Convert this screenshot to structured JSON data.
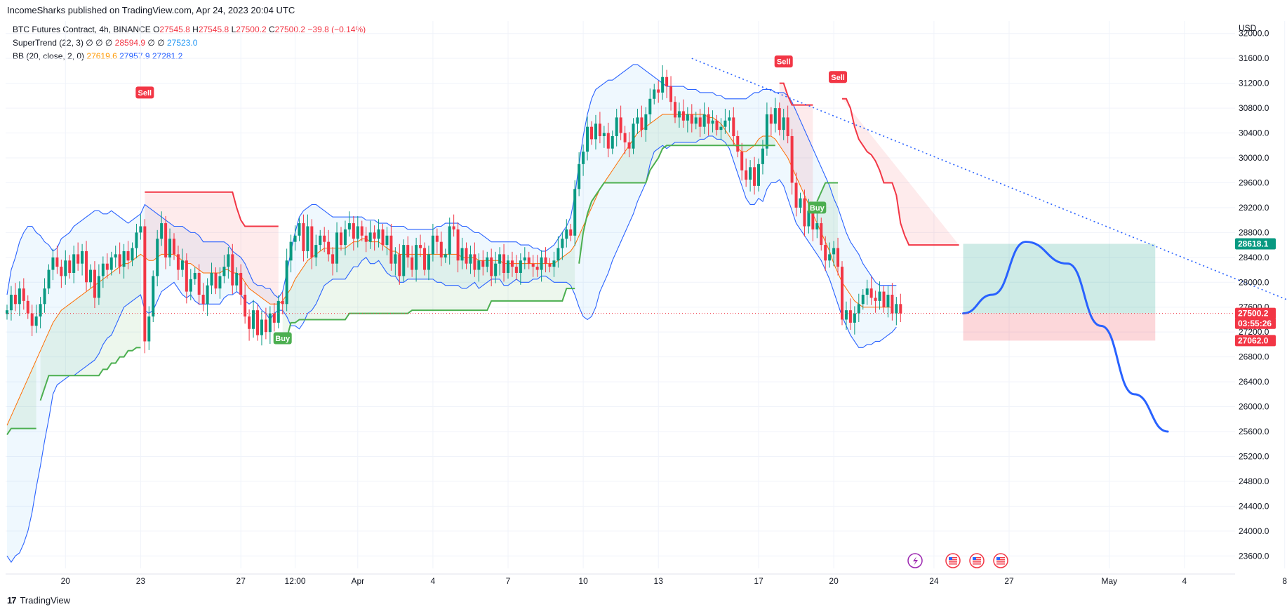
{
  "header": {
    "published": "IncomeSharks published on TradingView.com, Apr 24, 2023 20:04 UTC"
  },
  "legend": {
    "symbol": "BTC Futures Contract, 4h, BINANCE",
    "o_label": "O",
    "o": "27545.8",
    "h_label": "H",
    "h": "27545.8",
    "l_label": "L",
    "l": "27500.2",
    "c_label": "C",
    "c": "27500.2",
    "change": "−39.8 (−0.14%)",
    "supertrend_label": "SuperTrend (22, 3)",
    "supertrend_dots": "∅ ∅ ∅",
    "supertrend_v1": "28594.9",
    "supertrend_dots2": "∅ ∅",
    "supertrend_v2": "27523.0",
    "bb_label": "BB (20, close, 2, 0)",
    "bb_basis": "27619.6",
    "bb_upper": "27957.9",
    "bb_lower": "27281.2"
  },
  "footer": {
    "brand": "TradingView",
    "logo": "17"
  },
  "colors": {
    "up": "#089981",
    "down": "#f23645",
    "bb_band": "#2962ff",
    "bb_basis": "#ff6d00",
    "st_up": "#4caf50",
    "st_down": "#f23645",
    "projection": "#2962ff"
  },
  "chart_data": {
    "type": "candlestick",
    "title": "",
    "currency": "USD",
    "ylim": [
      23400,
      32200
    ],
    "yticks": [
      23600,
      24000,
      24400,
      24800,
      25200,
      25600,
      26000,
      26400,
      26800,
      27200,
      27600,
      28000,
      28400,
      28800,
      29200,
      29600,
      30000,
      30400,
      30800,
      31200,
      31600,
      32000
    ],
    "xticks": [
      {
        "label": "20",
        "i": 14
      },
      {
        "label": "23",
        "i": 32
      },
      {
        "label": "27",
        "i": 56
      },
      {
        "label": "12:00",
        "i": 69
      },
      {
        "label": "Apr",
        "i": 84
      },
      {
        "label": "4",
        "i": 102
      },
      {
        "label": "7",
        "i": 120
      },
      {
        "label": "10",
        "i": 138
      },
      {
        "label": "13",
        "i": 156
      },
      {
        "label": "17",
        "i": 180
      },
      {
        "label": "20",
        "i": 198
      },
      {
        "label": "24",
        "i": 222
      },
      {
        "label": "27",
        "i": 240
      },
      {
        "label": "May",
        "i": 264
      },
      {
        "label": "4",
        "i": 282
      },
      {
        "label": "8",
        "i": 306
      }
    ],
    "candles_close": [
      27550,
      27800,
      27650,
      27900,
      27700,
      27500,
      27300,
      27450,
      27650,
      27900,
      28200,
      28400,
      28250,
      28100,
      28350,
      28150,
      28450,
      28300,
      28500,
      28000,
      28200,
      27750,
      28100,
      28300,
      28200,
      28400,
      28450,
      28250,
      28500,
      28350,
      28550,
      28800,
      28900,
      27050,
      27450,
      28100,
      28700,
      28950,
      28400,
      28700,
      28450,
      28200,
      28350,
      27850,
      28050,
      28150,
      27800,
      27650,
      27950,
      28150,
      27900,
      28100,
      28250,
      28450,
      27950,
      28150,
      27800,
      27450,
      27250,
      27550,
      27150,
      27400,
      27200,
      27500,
      27350,
      27700,
      27650,
      28350,
      28650,
      28750,
      28950,
      28500,
      28900,
      28400,
      28600,
      28750,
      28650,
      28450,
      28300,
      28800,
      28600,
      28850,
      28950,
      28700,
      28900,
      28750,
      28650,
      28800,
      28700,
      28850,
      28600,
      28750,
      28300,
      28450,
      28100,
      28600,
      28400,
      28200,
      28600,
      28550,
      28200,
      28450,
      28750,
      28650,
      28400,
      28450,
      28900,
      28850,
      28350,
      28550,
      28300,
      28450,
      28200,
      28350,
      28250,
      28400,
      28100,
      28300,
      28450,
      28150,
      28350,
      28250,
      28150,
      28350,
      28400,
      28300,
      28250,
      28200,
      28400,
      28300,
      28250,
      28350,
      28550,
      28700,
      28850,
      28750,
      29500,
      29900,
      30100,
      30500,
      30300,
      30550,
      30350,
      30400,
      30150,
      30350,
      30650,
      30400,
      30250,
      30150,
      30550,
      30650,
      30450,
      30700,
      30950,
      31100,
      31050,
      31300,
      31150,
      30900,
      30650,
      30750,
      30600,
      30700,
      30550,
      30650,
      30500,
      30700,
      30550,
      30600,
      30450,
      30500,
      30600,
      30650,
      30350,
      30100,
      29800,
      29650,
      29850,
      29550,
      29900,
      30150,
      30700,
      30550,
      30800,
      30450,
      30650,
      30350,
      29600,
      29200,
      29350,
      28900,
      29150,
      28850,
      28950,
      28600,
      28350,
      28450,
      28550,
      28250,
      27400,
      27550,
      27350,
      27500,
      27650,
      27800,
      27900,
      27750,
      27700,
      27850,
      27600,
      27800,
      27500,
      27650,
      27500
    ],
    "bb_basis": [
      25700,
      25850,
      26000,
      26150,
      26300,
      26450,
      26600,
      26750,
      26900,
      27050,
      27200,
      27350,
      27450,
      27550,
      27600,
      27650,
      27700,
      27750,
      27800,
      27850,
      27900,
      27950,
      28000,
      28050,
      28100,
      28150,
      28200,
      28250,
      28300,
      28300,
      28350,
      28400,
      28450,
      28400,
      28350,
      28350,
      28400,
      28450,
      28450,
      28450,
      28450,
      28400,
      28350,
      28300,
      28300,
      28250,
      28200,
      28150,
      28150,
      28150,
      28150,
      28150,
      28200,
      28200,
      28150,
      28150,
      28100,
      28000,
      27900,
      27850,
      27800,
      27750,
      27700,
      27650,
      27650,
      27650,
      27700,
      27800,
      27900,
      28050,
      28150,
      28250,
      28350,
      28400,
      28450,
      28500,
      28550,
      28550,
      28550,
      28550,
      28550,
      28550,
      28600,
      28650,
      28650,
      28700,
      28700,
      28650,
      28650,
      28650,
      28600,
      28550,
      28500,
      28500,
      28450,
      28450,
      28450,
      28450,
      28450,
      28450,
      28450,
      28450,
      28450,
      28450,
      28450,
      28450,
      28450,
      28450,
      28450,
      28400,
      28400,
      28400,
      28400,
      28350,
      28350,
      28350,
      28350,
      28350,
      28350,
      28300,
      28300,
      28300,
      28300,
      28300,
      28300,
      28300,
      28300,
      28300,
      28300,
      28300,
      28300,
      28300,
      28350,
      28400,
      28450,
      28500,
      28600,
      28750,
      28900,
      29050,
      29200,
      29350,
      29500,
      29600,
      29700,
      29800,
      29900,
      30000,
      30100,
      30200,
      30300,
      30400,
      30450,
      30500,
      30550,
      30600,
      30650,
      30700,
      30700,
      30700,
      30700,
      30700,
      30700,
      30700,
      30700,
      30700,
      30700,
      30700,
      30650,
      30650,
      30600,
      30550,
      30450,
      30350,
      30250,
      30150,
      30100,
      30100,
      30150,
      30200,
      30300,
      30350,
      30350,
      30350,
      30300,
      30200,
      30100,
      30000,
      29850,
      29700,
      29550,
      29400,
      29250,
      29100,
      28950,
      28800,
      28650,
      28500,
      28300,
      28150,
      28000,
      27900,
      27800,
      27700,
      27650,
      27600,
      27600,
      27600,
      27600,
      27600,
      27600,
      27600,
      27600
    ],
    "bb_upper": [
      27800,
      28200,
      28400,
      28650,
      28800,
      28900,
      28900,
      28800,
      28750,
      28650,
      28600,
      28500,
      28550,
      28700,
      28750,
      28800,
      28900,
      28950,
      29000,
      29050,
      29100,
      29150,
      29150,
      29100,
      29100,
      29150,
      29100,
      29050,
      29000,
      28950,
      29000,
      29050,
      29100,
      29250,
      29200,
      29150,
      29100,
      29050,
      29000,
      28950,
      28900,
      28900,
      28900,
      28850,
      28800,
      28800,
      28750,
      28650,
      28650,
      28650,
      28650,
      28650,
      28650,
      28600,
      28500,
      28450,
      28400,
      28300,
      28150,
      28000,
      27950,
      27950,
      27900,
      27900,
      27800,
      27750,
      27850,
      28150,
      28500,
      28800,
      29050,
      29150,
      29200,
      29250,
      29250,
      29200,
      29150,
      29100,
      29050,
      29050,
      29050,
      29050,
      29050,
      29050,
      29050,
      29050,
      29000,
      29000,
      29000,
      28950,
      28950,
      28950,
      28900,
      28900,
      28900,
      28900,
      28850,
      28850,
      28850,
      28850,
      28850,
      28850,
      28850,
      28900,
      28900,
      28950,
      28950,
      28950,
      28950,
      28900,
      28900,
      28850,
      28800,
      28800,
      28750,
      28700,
      28650,
      28650,
      28650,
      28650,
      28650,
      28650,
      28650,
      28600,
      28600,
      28600,
      28550,
      28550,
      28500,
      28500,
      28550,
      28600,
      28700,
      28800,
      28900,
      29050,
      29400,
      29900,
      30350,
      30700,
      30950,
      31100,
      31150,
      31200,
      31250,
      31250,
      31300,
      31350,
      31400,
      31450,
      31500,
      31500,
      31450,
      31400,
      31350,
      31300,
      31250,
      31200,
      31150,
      31150,
      31150,
      31150,
      31150,
      31100,
      31100,
      31100,
      31050,
      31050,
      31050,
      31050,
      31000,
      31000,
      30950,
      30950,
      30950,
      30950,
      30950,
      30950,
      31000,
      31050,
      31050,
      31100,
      31100,
      31100,
      31050,
      31050,
      31050,
      31000,
      30900,
      30750,
      30600,
      30450,
      30300,
      30150,
      30000,
      29850,
      29700,
      29550,
      29350,
      29200,
      29000,
      28800,
      28650,
      28550,
      28450,
      28300,
      28200,
      28100,
      28000,
      27950,
      27950,
      27950,
      27950,
      27950
    ],
    "bb_lower": [
      23600,
      23500,
      23600,
      23650,
      23800,
      24000,
      24300,
      24700,
      25050,
      25450,
      25800,
      26200,
      26350,
      26400,
      26450,
      26500,
      26500,
      26550,
      26600,
      26650,
      26700,
      26750,
      26850,
      27000,
      27100,
      27150,
      27300,
      27450,
      27600,
      27650,
      27700,
      27750,
      27800,
      27550,
      27500,
      27550,
      27700,
      27850,
      27900,
      27950,
      28000,
      27900,
      27800,
      27750,
      27800,
      27700,
      27650,
      27650,
      27650,
      27650,
      27650,
      27650,
      27750,
      27800,
      27800,
      27850,
      27800,
      27700,
      27650,
      27700,
      27650,
      27550,
      27500,
      27400,
      27500,
      27550,
      27550,
      27450,
      27300,
      27300,
      27250,
      27350,
      27500,
      27550,
      27650,
      27800,
      27950,
      28000,
      28050,
      28050,
      28050,
      28050,
      28150,
      28250,
      28250,
      28350,
      28400,
      28300,
      28300,
      28350,
      28250,
      28150,
      28100,
      28100,
      28000,
      28000,
      28050,
      28050,
      28050,
      28050,
      28050,
      28050,
      28050,
      28000,
      28000,
      27950,
      27950,
      27950,
      27950,
      27900,
      27900,
      27950,
      28000,
      27900,
      27950,
      28000,
      28050,
      28050,
      28050,
      27950,
      27950,
      28000,
      28050,
      28000,
      28000,
      28000,
      28050,
      28050,
      28100,
      28100,
      28050,
      28000,
      28000,
      28000,
      28000,
      27950,
      27800,
      27600,
      27450,
      27400,
      27450,
      27600,
      27850,
      28000,
      28150,
      28350,
      28500,
      28650,
      28800,
      28950,
      29100,
      29300,
      29450,
      29600,
      29900,
      30100,
      30150,
      30200,
      30150,
      30200,
      30250,
      30250,
      30250,
      30250,
      30250,
      30250,
      30300,
      30300,
      30350,
      30350,
      30300,
      30300,
      30250,
      30150,
      29950,
      29750,
      29550,
      29350,
      29250,
      29250,
      29350,
      29300,
      29500,
      29600,
      29600,
      29650,
      29550,
      29350,
      29150,
      28950,
      28850,
      28750,
      28650,
      28550,
      28450,
      28350,
      28200,
      28050,
      27850,
      27650,
      27450,
      27300,
      27150,
      27050,
      26950,
      26950,
      27000,
      27000,
      27050,
      27050,
      27100,
      27150,
      27200,
      27280
    ],
    "supertrend": [
      {
        "side": "up",
        "from": 0,
        "to": 7,
        "values": [
          25550,
          25650,
          25650,
          25650,
          25650,
          25650,
          25650,
          25650
        ]
      },
      {
        "side": "up",
        "from": 8,
        "to": 32,
        "values": [
          26100,
          26300,
          26500,
          26500,
          26500,
          26500,
          26500,
          26500,
          26500,
          26500,
          26500,
          26500,
          26500,
          26500,
          26500,
          26600,
          26600,
          26700,
          26700,
          26800,
          26800,
          26900,
          26900,
          26950,
          26950
        ]
      },
      {
        "side": "down",
        "from": 33,
        "to": 65,
        "values": [
          29450,
          29450,
          29450,
          29450,
          29450,
          29450,
          29450,
          29450,
          29450,
          29450,
          29450,
          29450,
          29450,
          29450,
          29450,
          29450,
          29450,
          29450,
          29450,
          29450,
          29450,
          29450,
          29200,
          29000,
          28900,
          28900,
          28900,
          28900,
          28900,
          28900,
          28900,
          28900,
          28900
        ]
      },
      {
        "side": "up",
        "from": 66,
        "to": 136,
        "values": [
          27100,
          27100,
          27350,
          27350,
          27400,
          27400,
          27400,
          27400,
          27400,
          27400,
          27400,
          27400,
          27400,
          27400,
          27400,
          27400,
          27500,
          27500,
          27500,
          27500,
          27500,
          27500,
          27500,
          27500,
          27500,
          27500,
          27500,
          27500,
          27500,
          27500,
          27500,
          27550,
          27550,
          27550,
          27550,
          27550,
          27550,
          27550,
          27550,
          27550,
          27550,
          27550,
          27550,
          27550,
          27550,
          27550,
          27550,
          27550,
          27550,
          27550,
          27700,
          27700,
          27700,
          27700,
          27700,
          27700,
          27700,
          27700,
          27700,
          27700,
          27700,
          27700,
          27700,
          27700,
          27700,
          27700,
          27700,
          27700,
          27900,
          27900,
          27900
        ]
      },
      {
        "side": "up",
        "from": 137,
        "to": 184,
        "values": [
          28300,
          28800,
          29100,
          29300,
          29400,
          29500,
          29600,
          29600,
          29600,
          29600,
          29600,
          29600,
          29600,
          29600,
          29600,
          29600,
          29600,
          29800,
          29900,
          30000,
          30150,
          30200,
          30200,
          30200,
          30200,
          30200,
          30200,
          30200,
          30200,
          30200,
          30200,
          30200,
          30200,
          30200,
          30200,
          30200,
          30200,
          30200,
          30200,
          30200,
          30200,
          30200,
          30200,
          30200,
          30200,
          30200,
          30200,
          30200
        ]
      },
      {
        "side": "down",
        "from": 185,
        "to": 193,
        "values": [
          31200,
          31200,
          31000,
          30850,
          30850,
          30850,
          30850,
          30850,
          30850
        ]
      },
      {
        "side": "up",
        "from": 194,
        "to": 199,
        "values": [
          29300,
          29450,
          29600,
          29600,
          29600,
          29600
        ]
      },
      {
        "side": "down",
        "from": 200,
        "to": 228,
        "values": [
          30950,
          30950,
          30800,
          30500,
          30300,
          30200,
          30100,
          30050,
          29950,
          29800,
          29600,
          29600,
          29600,
          29400,
          28950,
          28750,
          28600,
          28600,
          28600,
          28600,
          28600,
          28600,
          28600,
          28600,
          28600,
          28600,
          28600,
          28600,
          28600
        ]
      }
    ],
    "signals": [
      {
        "type": "Sell",
        "i": 33,
        "price": 31050
      },
      {
        "type": "Buy",
        "i": 66,
        "price": 27100
      },
      {
        "type": "Sell",
        "i": 186,
        "price": 31550
      },
      {
        "type": "Sell",
        "i": 199,
        "price": 31300
      },
      {
        "type": "Buy",
        "i": 194,
        "price": 29200
      }
    ],
    "trendline": {
      "from": {
        "i": 164,
        "price": 31600
      },
      "to": {
        "i": 322,
        "price": 27300
      }
    },
    "position": {
      "from_i": 229,
      "to_i": 275,
      "entry": 27500.2,
      "target": 28618.1,
      "stop": 27062.0
    },
    "projection": [
      {
        "i": 229,
        "price": 27500
      },
      {
        "i": 236,
        "price": 27800
      },
      {
        "i": 244,
        "price": 28650
      },
      {
        "i": 254,
        "price": 28300
      },
      {
        "i": 262,
        "price": 27300
      },
      {
        "i": 270,
        "price": 26200
      },
      {
        "i": 278,
        "price": 25600
      }
    ],
    "price_labels": [
      {
        "value": "28618.1",
        "price": 28618.1,
        "color": "#089981"
      },
      {
        "value": "27500.2",
        "price": 27500.2,
        "color": "#f23645"
      },
      {
        "value": "03:55:26",
        "price": 27340,
        "color": "#f23645"
      },
      {
        "value": "27062.0",
        "price": 27062.0,
        "color": "#f23645"
      }
    ],
    "event_icons": [
      "lightning-icon",
      "us-flag-icon",
      "us-flag-icon",
      "us-flag-icon"
    ]
  }
}
